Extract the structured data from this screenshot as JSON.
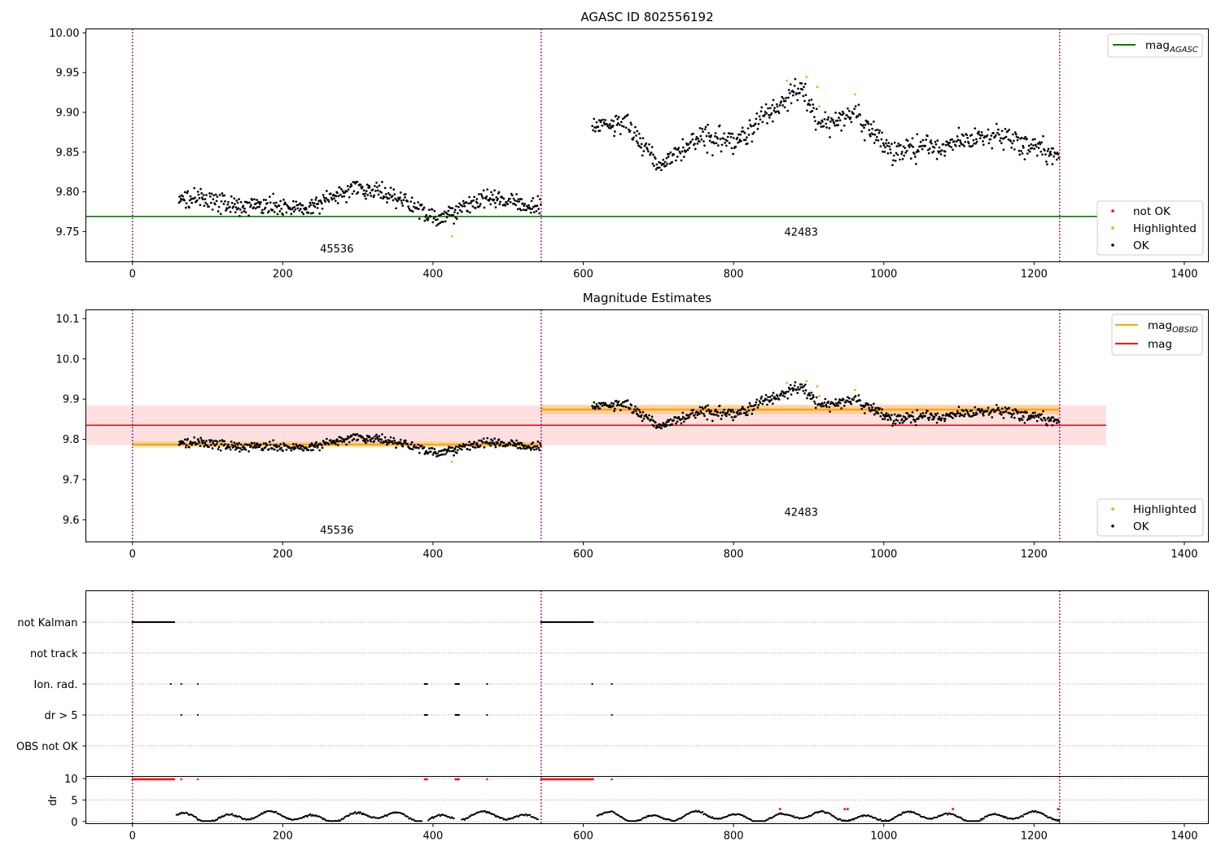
{
  "chart_data": [
    {
      "type": "scatter",
      "title": "AGASC ID 802556192",
      "xlim": [
        -62,
        1432
      ],
      "ylim": [
        9.712,
        10.005
      ],
      "x_ticks": [
        0,
        200,
        400,
        600,
        800,
        1000,
        1200,
        1400
      ],
      "y_ticks": [
        9.75,
        9.8,
        9.85,
        9.9,
        9.95,
        10.0
      ],
      "y_tick_labels": [
        "9.75",
        "9.80",
        "9.85",
        "9.90",
        "9.95",
        "10.00"
      ],
      "obs_boundaries": [
        0,
        544,
        1234
      ],
      "obsid_labels": [
        {
          "text": "45536",
          "x": 272,
          "y": 9.724
        },
        {
          "text": "42483",
          "x": 890,
          "y": 9.745
        }
      ],
      "mag_agasc": 9.769,
      "segments": [
        {
          "x_start": 62,
          "x_end": 544,
          "breaks": [
            [
              62,
              9.795
            ],
            [
              150,
              9.782
            ],
            [
              230,
              9.78
            ],
            [
              300,
              9.807
            ],
            [
              360,
              9.79
            ],
            [
              410,
              9.765
            ],
            [
              470,
              9.793
            ],
            [
              544,
              9.78
            ]
          ],
          "noise": 0.012
        },
        {
          "x_start": 612,
          "x_end": 1234,
          "breaks": [
            [
              612,
              9.88
            ],
            [
              650,
              9.888
            ],
            [
              700,
              9.835
            ],
            [
              760,
              9.868
            ],
            [
              800,
              9.86
            ],
            [
              850,
              9.9
            ],
            [
              890,
              9.93
            ],
            [
              915,
              9.885
            ],
            [
              960,
              9.9
            ],
            [
              1010,
              9.85
            ],
            [
              1100,
              9.862
            ],
            [
              1150,
              9.872
            ],
            [
              1200,
              9.858
            ],
            [
              1234,
              9.845
            ]
          ],
          "noise": 0.015
        }
      ],
      "highlight_ranges": [
        [
          860,
          915
        ],
        [
          955,
          965
        ]
      ],
      "legend_top": [
        {
          "label": "mag",
          "sub": "AGASC",
          "color": "#008000"
        }
      ],
      "legend_bottom": [
        {
          "label": "not OK",
          "color": "#ff0000"
        },
        {
          "label": "Highlighted",
          "color": "#ffa500"
        },
        {
          "label": "OK",
          "color": "#000000"
        }
      ]
    },
    {
      "type": "scatter",
      "title": "Magnitude Estimates",
      "xlim": [
        -62,
        1432
      ],
      "ylim": [
        9.545,
        10.122
      ],
      "x_ticks": [
        0,
        200,
        400,
        600,
        800,
        1000,
        1200,
        1400
      ],
      "y_ticks": [
        9.6,
        9.7,
        9.8,
        9.9,
        10.0,
        10.1
      ],
      "y_tick_labels": [
        "9.6",
        "9.7",
        "9.8",
        "9.9",
        "10.0",
        "10.1"
      ],
      "obs_boundaries": [
        0,
        544,
        1234
      ],
      "obsid_labels": [
        {
          "text": "45536",
          "x": 272,
          "y": 9.565
        },
        {
          "text": "42483",
          "x": 890,
          "y": 9.61
        }
      ],
      "mag": 9.835,
      "mag_band": [
        9.786,
        9.884
      ],
      "mag_band_x": [
        -62,
        1296
      ],
      "mag_obsid": [
        {
          "x_start": 0,
          "x_end": 544,
          "value": 9.787,
          "band": [
            9.78,
            9.795
          ]
        },
        {
          "x_start": 544,
          "x_end": 1234,
          "value": 9.874,
          "band": [
            9.862,
            9.887
          ]
        }
      ],
      "legend_top": [
        {
          "label": "mag",
          "sub": "OBSID",
          "color": "#ffa500"
        },
        {
          "label": "mag",
          "sub": "",
          "color": "#ff0000"
        }
      ],
      "legend_bottom": [
        {
          "label": "Highlighted",
          "color": "#ffa500"
        },
        {
          "label": "OK",
          "color": "#000000"
        }
      ]
    },
    {
      "type": "scatter",
      "xlim": [
        -62,
        1432
      ],
      "x_ticks": [
        0,
        200,
        400,
        600,
        800,
        1000,
        1200,
        1400
      ],
      "obs_boundaries": [
        0,
        544,
        1234
      ],
      "flag_rows": [
        "not Kalman",
        "not track",
        "Ion. rad.",
        "dr > 5",
        "OBS not OK"
      ],
      "flags": {
        "not Kalman": [
          [
            0,
            56
          ],
          [
            544,
            614
          ]
        ],
        "not track": [],
        "Ion. rad.": [
          [
            51,
            51
          ],
          [
            65,
            65
          ],
          [
            87,
            87
          ],
          [
            389,
            392
          ],
          [
            430,
            435
          ],
          [
            472,
            472
          ],
          [
            612,
            612
          ],
          [
            638,
            638
          ]
        ],
        "dr > 5": [
          [
            65,
            65
          ],
          [
            87,
            87
          ],
          [
            389,
            392
          ],
          [
            430,
            435
          ],
          [
            472,
            472
          ],
          [
            638,
            638
          ]
        ],
        "OBS not OK": []
      },
      "dr": {
        "ylabel": "dr",
        "ylim": [
          -0.5,
          10.5
        ],
        "y_ticks": [
          0,
          5,
          10
        ],
        "y_tick_labels": [
          "0",
          "5",
          "10"
        ],
        "capped_ranges": [
          [
            0,
            56
          ],
          [
            65,
            65
          ],
          [
            87,
            87
          ],
          [
            389,
            392
          ],
          [
            430,
            435
          ],
          [
            472,
            472
          ],
          [
            544,
            614
          ],
          [
            638,
            638
          ]
        ],
        "gap_ranges": [
          [
            56,
            58
          ],
          [
            386,
            394
          ],
          [
            428,
            437
          ],
          [
            540,
            548
          ],
          [
            612,
            618
          ]
        ],
        "red_x": [
          862,
          948,
          952,
          1092,
          1232
        ]
      }
    }
  ]
}
